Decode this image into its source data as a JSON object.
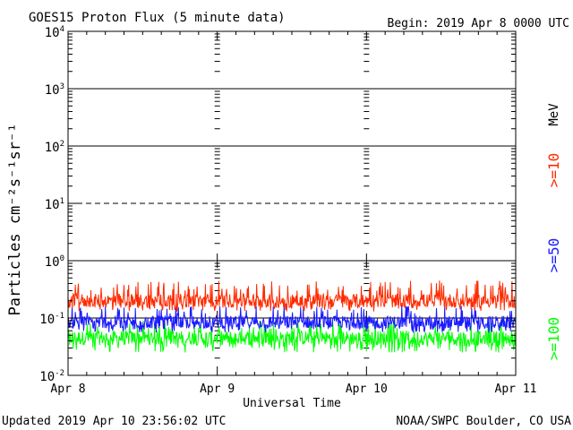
{
  "chart_data": {
    "type": "line",
    "title": "GOES15 Proton Flux (5 minute data)",
    "begin_label": "Begin: 2019 Apr 8 0000 UTC",
    "xlabel": "Universal Time",
    "ylabel": "Particles cm⁻²s⁻¹sr⁻¹",
    "y_scale": "log",
    "ylim": [
      0.01,
      10000
    ],
    "x_days": [
      0,
      3
    ],
    "x_tick_labels": [
      "Apr 8",
      "Apr 9",
      "Apr 10",
      "Apr 11"
    ],
    "y_tick_labels": [
      {
        "base": "10",
        "exp": "4"
      },
      {
        "base": "10",
        "exp": "3"
      },
      {
        "base": "10",
        "exp": "2"
      },
      {
        "base": "10",
        "exp": "1"
      },
      {
        "base": "10",
        "exp": "0"
      },
      {
        "base": "10",
        "exp": "-1"
      },
      {
        "base": "10",
        "exp": "-2"
      }
    ],
    "thresholds": [
      {
        "value": 1000,
        "style": "solid"
      },
      {
        "value": 100,
        "style": "solid"
      },
      {
        "value": 10,
        "style": "dashed"
      },
      {
        "value": 1,
        "style": "solid"
      },
      {
        "value": 0.1,
        "style": "solid"
      }
    ],
    "unit_label": "MeV",
    "series": [
      {
        "name": ">=10",
        "color": "#ff2a00",
        "typical": 0.2,
        "low": 0.13,
        "high": 0.45
      },
      {
        "name": ">=50",
        "color": "#1a1aff",
        "typical": 0.085,
        "low": 0.055,
        "high": 0.17
      },
      {
        "name": ">=100",
        "color": "#00ff00",
        "typical": 0.045,
        "low": 0.025,
        "high": 0.09
      }
    ]
  },
  "footer": {
    "updated": "Updated 2019 Apr 10 23:56:02 UTC",
    "source": "NOAA/SWPC Boulder, CO USA"
  }
}
